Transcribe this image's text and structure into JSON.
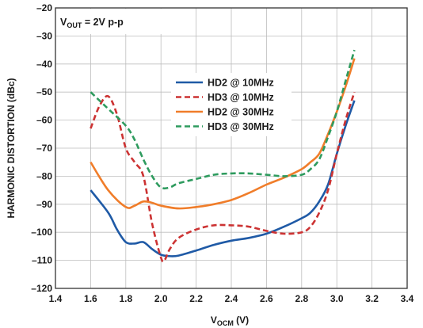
{
  "chart_data": {
    "type": "line",
    "title": "",
    "annotation": {
      "main": "V",
      "sub": "OUT",
      "rest": " = 2V p-p"
    },
    "xlabel": {
      "main": "V",
      "sub": "OCM",
      "rest": " (V)"
    },
    "ylabel": "HARMONIC DISTORTION (dBc)",
    "xlim": [
      1.4,
      3.4
    ],
    "ylim": [
      -120,
      -20
    ],
    "x_ticks": [
      1.4,
      1.6,
      1.8,
      2.0,
      2.2,
      2.4,
      2.6,
      2.8,
      3.0,
      3.2,
      3.4
    ],
    "x_tick_labels": [
      "1.4",
      "1.6",
      "1.8",
      "2.0",
      "2.2",
      "2.4",
      "2.6",
      "2.8",
      "3.0",
      "3.2",
      "3.4"
    ],
    "y_ticks": [
      -120,
      -110,
      -100,
      -90,
      -80,
      -70,
      -60,
      -50,
      -40,
      -30,
      -20
    ],
    "y_tick_labels": [
      "–120",
      "–110",
      "–100",
      "–90",
      "–80",
      "–70",
      "–60",
      "–50",
      "–40",
      "–30",
      "–20"
    ],
    "grid": true,
    "legend_position": "center",
    "series": [
      {
        "name": "HD2 @ 10MHz",
        "color": "#1f5aa6",
        "dash": "solid",
        "points": [
          [
            1.6,
            -85
          ],
          [
            1.7,
            -93
          ],
          [
            1.75,
            -99
          ],
          [
            1.8,
            -103.5
          ],
          [
            1.85,
            -104
          ],
          [
            1.9,
            -103.5
          ],
          [
            1.95,
            -106
          ],
          [
            2.0,
            -108
          ],
          [
            2.05,
            -108.5
          ],
          [
            2.1,
            -108.3
          ],
          [
            2.2,
            -106.5
          ],
          [
            2.3,
            -104.5
          ],
          [
            2.4,
            -103
          ],
          [
            2.5,
            -102
          ],
          [
            2.6,
            -100.5
          ],
          [
            2.7,
            -98
          ],
          [
            2.8,
            -95
          ],
          [
            2.85,
            -93
          ],
          [
            2.9,
            -89
          ],
          [
            2.95,
            -83
          ],
          [
            3.0,
            -72
          ],
          [
            3.05,
            -62
          ],
          [
            3.1,
            -53
          ]
        ]
      },
      {
        "name": "HD3 @ 10MHz",
        "color": "#cc3333",
        "dash": "dashed",
        "points": [
          [
            1.6,
            -63
          ],
          [
            1.65,
            -55
          ],
          [
            1.7,
            -51.5
          ],
          [
            1.75,
            -58
          ],
          [
            1.8,
            -70
          ],
          [
            1.85,
            -75
          ],
          [
            1.9,
            -80
          ],
          [
            1.95,
            -97
          ],
          [
            2.0,
            -109
          ],
          [
            2.02,
            -110
          ],
          [
            2.05,
            -106
          ],
          [
            2.1,
            -102
          ],
          [
            2.2,
            -99
          ],
          [
            2.3,
            -97.5
          ],
          [
            2.4,
            -97.5
          ],
          [
            2.5,
            -98
          ],
          [
            2.6,
            -99.5
          ],
          [
            2.7,
            -100.5
          ],
          [
            2.8,
            -100
          ],
          [
            2.85,
            -98
          ],
          [
            2.9,
            -93
          ],
          [
            2.95,
            -85
          ],
          [
            3.0,
            -72
          ],
          [
            3.05,
            -60
          ],
          [
            3.1,
            -50
          ]
        ]
      },
      {
        "name": "HD2 @ 30MHz",
        "color": "#f07d2a",
        "dash": "solid",
        "points": [
          [
            1.6,
            -75
          ],
          [
            1.7,
            -85
          ],
          [
            1.8,
            -91
          ],
          [
            1.85,
            -90.5
          ],
          [
            1.9,
            -89
          ],
          [
            1.95,
            -89.5
          ],
          [
            2.0,
            -90.5
          ],
          [
            2.1,
            -91.5
          ],
          [
            2.2,
            -91
          ],
          [
            2.3,
            -90
          ],
          [
            2.4,
            -88.5
          ],
          [
            2.5,
            -86
          ],
          [
            2.6,
            -83
          ],
          [
            2.7,
            -80.5
          ],
          [
            2.8,
            -77.5
          ],
          [
            2.85,
            -75
          ],
          [
            2.9,
            -72
          ],
          [
            2.95,
            -65
          ],
          [
            3.0,
            -57
          ],
          [
            3.05,
            -48
          ],
          [
            3.1,
            -38
          ]
        ]
      },
      {
        "name": "HD3 @ 30MHz",
        "color": "#2e9b5e",
        "dash": "dashed",
        "points": [
          [
            1.6,
            -50
          ],
          [
            1.65,
            -53
          ],
          [
            1.7,
            -56
          ],
          [
            1.8,
            -62
          ],
          [
            1.85,
            -67
          ],
          [
            1.9,
            -74
          ],
          [
            1.95,
            -80
          ],
          [
            2.0,
            -84
          ],
          [
            2.05,
            -84
          ],
          [
            2.1,
            -82.5
          ],
          [
            2.2,
            -81
          ],
          [
            2.3,
            -79.5
          ],
          [
            2.4,
            -79
          ],
          [
            2.5,
            -79
          ],
          [
            2.6,
            -79.5
          ],
          [
            2.7,
            -80
          ],
          [
            2.8,
            -79.5
          ],
          [
            2.85,
            -77.5
          ],
          [
            2.9,
            -74
          ],
          [
            2.95,
            -66
          ],
          [
            3.0,
            -57
          ],
          [
            3.05,
            -46
          ],
          [
            3.1,
            -35
          ]
        ]
      }
    ]
  }
}
